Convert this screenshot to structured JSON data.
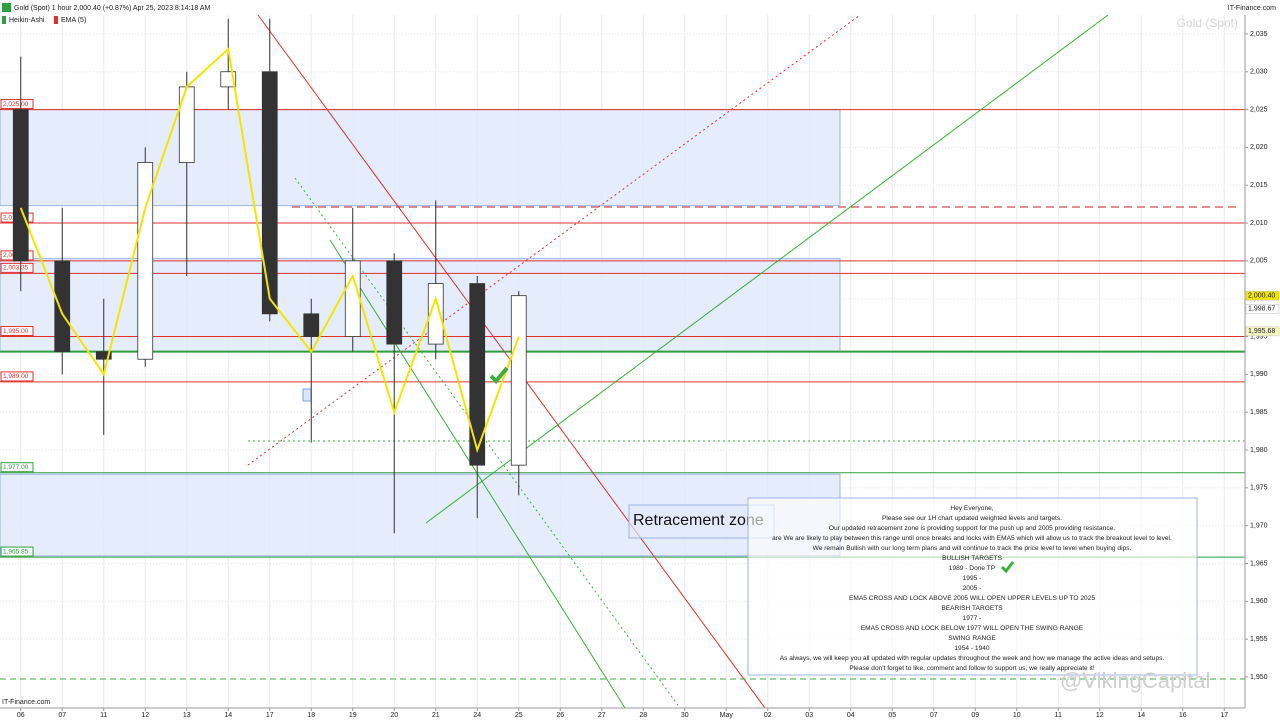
{
  "chart_data": {
    "type": "candlestick",
    "title": "Gold (Spot) 1 hour 2,000.40 (+0.87%) Apr 25, 2023 8:14:18 AM",
    "source": "IT-Finance.com",
    "watermark": "Gold (Spot)",
    "footer": "IT-Finance.com",
    "author": "@VikingCapital",
    "zone_label": "Retracement zone",
    "categories": [
      "06",
      "07",
      "11",
      "12",
      "13",
      "14",
      "17",
      "18",
      "19",
      "20",
      "21",
      "24",
      "25",
      "26",
      "27",
      "28",
      "30",
      "May",
      "02",
      "03",
      "04",
      "05",
      "07",
      "09",
      "10",
      "11",
      "12",
      "14",
      "16",
      "17"
    ],
    "series": [
      {
        "name": "Heikin-Ashi",
        "color": "#333333",
        "open": [
          2025,
          2005,
          1993,
          1992,
          2018,
          2028,
          2030,
          1998,
          1995,
          2005,
          1994,
          2002,
          1978,
          null,
          null,
          null,
          null,
          null,
          null,
          null,
          null,
          null,
          null,
          null,
          null,
          null,
          null,
          null,
          null,
          null
        ],
        "high": [
          2032,
          2012,
          2000,
          2020,
          2030,
          2037,
          2037,
          2000,
          2012,
          2006,
          2013,
          2003,
          2001,
          null,
          null,
          null,
          null,
          null,
          null,
          null,
          null,
          null,
          null,
          null,
          null,
          null,
          null,
          null,
          null,
          null
        ],
        "low": [
          2001,
          1990,
          1982,
          1991,
          2003,
          2025,
          1997,
          1981,
          1993,
          1969,
          1992,
          1971,
          1974,
          null,
          null,
          null,
          null,
          null,
          null,
          null,
          null,
          null,
          null,
          null,
          null,
          null,
          null,
          null,
          null,
          null
        ],
        "close": [
          2005,
          1993,
          1992,
          2018,
          2028,
          2030,
          1998,
          1995,
          2005,
          1994,
          2002,
          1978,
          2000.4,
          null,
          null,
          null,
          null,
          null,
          null,
          null,
          null,
          null,
          null,
          null,
          null,
          null,
          null,
          null,
          null,
          null
        ]
      },
      {
        "name": "EMA (5)",
        "color": "#f2e600",
        "values": [
          2012,
          1998,
          1990,
          2012,
          2028,
          2033,
          2000,
          1993,
          2003,
          1985,
          2000,
          1980,
          1995,
          null,
          null,
          null,
          null,
          null,
          null,
          null,
          null,
          null,
          null,
          null,
          null,
          null,
          null,
          null,
          null,
          null
        ]
      }
    ],
    "ylim": [
      1945.9,
      2037.5
    ],
    "yticks": [
      {
        "value": 1950,
        "label": "1,950"
      },
      {
        "value": 1955,
        "label": "1,955"
      },
      {
        "value": 1960,
        "label": "1,960"
      },
      {
        "value": 1965,
        "label": "1,965"
      },
      {
        "value": 1970,
        "label": "1,970"
      },
      {
        "value": 1975,
        "label": "1,975"
      },
      {
        "value": 1980,
        "label": "1,980"
      },
      {
        "value": 1985,
        "label": "1,985"
      },
      {
        "value": 1990,
        "label": "1,990"
      },
      {
        "value": 1995,
        "label": "1,995"
      },
      {
        "value": 2000,
        "label": "2,000"
      },
      {
        "value": 2005,
        "label": "2,005"
      },
      {
        "value": 2010,
        "label": "2,010"
      },
      {
        "value": 2015,
        "label": "2,015"
      },
      {
        "value": 2020,
        "label": "2,020"
      },
      {
        "value": 2025,
        "label": "2,025"
      },
      {
        "value": 2030,
        "label": "2,030"
      },
      {
        "value": 2035,
        "label": "2,035"
      }
    ],
    "grid": true,
    "levels": [
      {
        "value": 2025,
        "label": "2,025.00",
        "color": "#e03030"
      },
      {
        "value": 2010,
        "label": "2,010.00",
        "color": "#e03030"
      },
      {
        "value": 2005,
        "label": "2,005.00",
        "color": "#e03030"
      },
      {
        "value": 2003.35,
        "label": "2,003.35",
        "color": "#e03030"
      },
      {
        "value": 1995,
        "label": "1,995.00",
        "color": "#e03030"
      },
      {
        "value": 1989,
        "label": "1,989.00",
        "color": "#e03030"
      },
      {
        "value": 1977,
        "label": "1,977.00",
        "color": "#2e9e3e"
      },
      {
        "value": 1965.85,
        "label": "1,965.85",
        "color": "#2e9e3e"
      }
    ],
    "support_line": 1993,
    "zones": [
      {
        "from": 2025,
        "to": 2012.3
      },
      {
        "from": 2005.3,
        "to": 1993
      },
      {
        "from": 1976.8,
        "to": 1966
      }
    ],
    "price_tags": [
      {
        "value": 2000.4,
        "label": "2,000.40",
        "color": "#f2e600"
      },
      {
        "value": 1998.67,
        "label": "1,998.67",
        "color": "#ffffff"
      },
      {
        "value": 1995.68,
        "label": "1,995.68",
        "color": "#fbf7c0"
      }
    ],
    "note_lines": [
      "Hey Everyone,",
      "Please see our 1H chart updated weighted  levels and targets.",
      "Our updated retracement zone is providing support for the push up and 2005  providing resistance.",
      "are We are likely to play between this range until once breaks and locks with EMA5 which will allow us to track the breakout level to level.",
      "We remain Bullish with our long term plans and will continue to track the price level to level when buying dips.",
      "BULLISH TARGETS",
      "1989 - Done TP",
      "1995 -",
      "2005 -",
      "EMA5 CROSS AND LOCK ABOVE 2005 WILL OPEN UPPER LEVELS UP TO 2025",
      "BEARISH TARGETS",
      "1977 -",
      "EMA5 CROSS AND LOCK BELOW 1977 WILL OPEN THE SWING RANGE",
      "SWING RANGE",
      "1954 - 1940",
      "As always, we will keep you all updated with regular updates throughout the week and how we manage the active ideas and setups.",
      "Please don't forget to like, comment and follow to support us, we really appreciate it!"
    ]
  }
}
